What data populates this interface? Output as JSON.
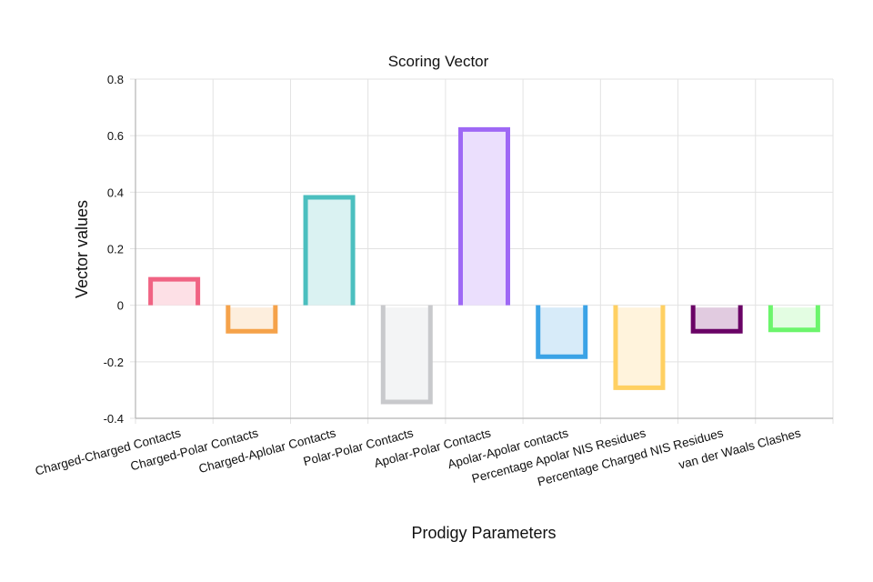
{
  "chart_data": {
    "type": "bar",
    "title": "Scoring Vector",
    "xlabel": "Prodigy Parameters",
    "ylabel": "Vector values",
    "ylim": [
      -0.4,
      0.8
    ],
    "yticks": [
      "0.8",
      "0.6",
      "0.4",
      "0.2",
      "0",
      "-0.2",
      "-0.4"
    ],
    "ytick_values": [
      0.8,
      0.6,
      0.4,
      0.2,
      0,
      -0.2,
      -0.4
    ],
    "grid": true,
    "legend": "none",
    "categories": [
      "Charged-Charged Contacts",
      "Charged-Polar Contacts",
      "Charged-Aplolar Contacts",
      "Polar-Polar Contacts",
      "Apolar-Polar Contacts",
      "Apolar-Apolar contacts",
      "Percentage Apolar NIS Residues",
      "Percentage Charged NIS Residues",
      "van der Waals Clashes"
    ],
    "values": [
      0.1,
      -0.1,
      0.39,
      -0.35,
      0.63,
      -0.19,
      -0.3,
      -0.1,
      -0.095
    ],
    "border_colors": [
      "#f06383",
      "#f5a24a",
      "#4bbfbf",
      "#c8c9cc",
      "#9e68f5",
      "#3ba3e6",
      "#ffd062",
      "#6a0466",
      "#6cf56c"
    ],
    "fill_colors": [
      "#fde0e6",
      "#fdeedd",
      "#daf2f2",
      "#f3f4f5",
      "#ebdffd",
      "#d7ebf9",
      "#fff3dc",
      "#e1cbe0",
      "#e3fde2"
    ]
  }
}
